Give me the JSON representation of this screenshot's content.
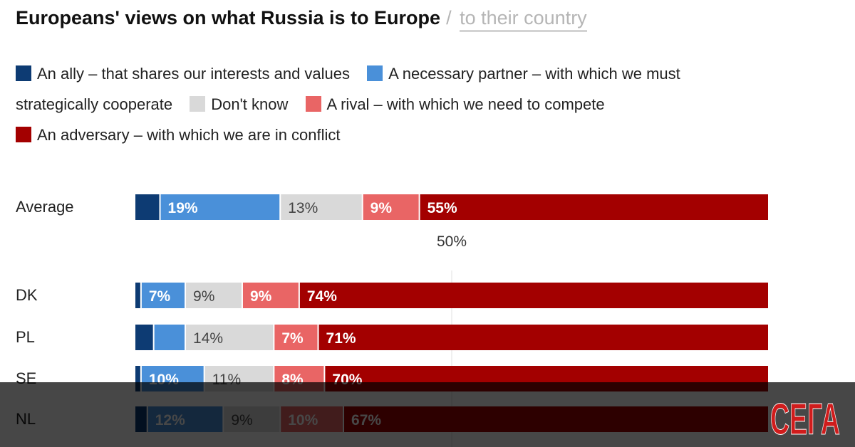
{
  "title": {
    "main": "Europeans' views on what Russia is to Europe",
    "separator": "/",
    "alt": "to their country"
  },
  "legend": [
    {
      "label": "An ally – that shares our interests and values",
      "color": "#0d3b73"
    },
    {
      "label": "A necessary partner – with which we must strategically cooperate",
      "color": "#4a90d9"
    },
    {
      "label": "Don't know",
      "color": "#d9d9d9"
    },
    {
      "label": "A rival – with which we need to compete",
      "color": "#e96565"
    },
    {
      "label": "An adversary – with which we are in conflict",
      "color": "#a30000"
    }
  ],
  "chart_data": {
    "type": "bar",
    "orientation": "horizontal",
    "stacked": true,
    "title": "Europeans' views on what Russia is to Europe",
    "categories": [
      "Average",
      "DK",
      "PL",
      "SE",
      "NL"
    ],
    "xlim": [
      0,
      100
    ],
    "reference_label": "50%",
    "series": [
      {
        "name": "An ally – that shares our interests and values",
        "values": [
          4,
          1,
          3,
          1,
          2
        ],
        "labels": [
          "",
          "",
          "",
          "",
          ""
        ]
      },
      {
        "name": "A necessary partner – with which we must strategically cooperate",
        "values": [
          19,
          7,
          5,
          10,
          12
        ],
        "labels": [
          "19%",
          "7%",
          "",
          "10%",
          "12%"
        ]
      },
      {
        "name": "Don't know",
        "values": [
          13,
          9,
          14,
          11,
          9
        ],
        "labels": [
          "13%",
          "9%",
          "14%",
          "11%",
          "9%"
        ]
      },
      {
        "name": "A rival – with which we need to compete",
        "values": [
          9,
          9,
          7,
          8,
          10
        ],
        "labels": [
          "9%",
          "9%",
          "7%",
          "8%",
          "10%"
        ]
      },
      {
        "name": "An adversary – with which we are in conflict",
        "values": [
          55,
          74,
          71,
          70,
          67
        ],
        "labels": [
          "55%",
          "74%",
          "71%",
          "70%",
          "67%"
        ]
      }
    ]
  },
  "watermark": {
    "text": "СЕГА",
    "color": "#d01c1c"
  }
}
